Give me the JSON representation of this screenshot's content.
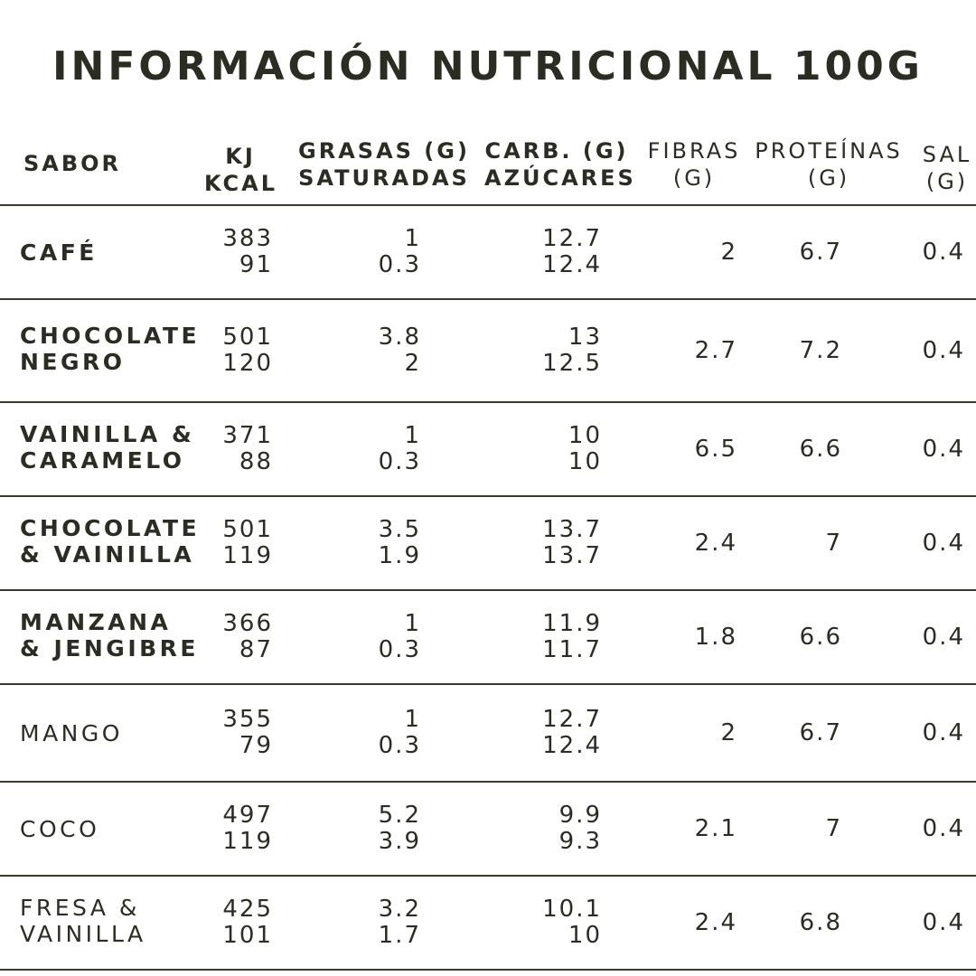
{
  "title": "INFORMACIÓN NUTRICIONAL 100G",
  "headers": {
    "sabor": "SABOR",
    "kj": "KJ",
    "kcal": "KCAL",
    "grasas": "GRASAS (G)",
    "saturadas": "SATURADAS",
    "carb": "CARB. (G)",
    "azucares": "AZÚCARES",
    "fibras_1": "FIBRAS",
    "fibras_2": "(G)",
    "proteinas_1": "PROTEÍNAS",
    "proteinas_2": "(G)",
    "sal_1": "SAL",
    "sal_2": "(G)"
  },
  "rows": [
    {
      "sabor": [
        "CAFÉ"
      ],
      "kj": "383",
      "kcal": "91",
      "grasas": "1",
      "saturadas": "0.3",
      "carb": "12.7",
      "azucares": "12.4",
      "fibras": "2",
      "proteinas": "6.7",
      "sal": "0.4"
    },
    {
      "sabor": [
        "CHOCOLATE",
        "NEGRO"
      ],
      "kj": "501",
      "kcal": "120",
      "grasas": "3.8",
      "saturadas": "2",
      "carb": "13",
      "azucares": "12.5",
      "fibras": "2.7",
      "proteinas": "7.2",
      "sal": "0.4"
    },
    {
      "sabor": [
        "VAINILLA &",
        "CARAMELO"
      ],
      "kj": "371",
      "kcal": "88",
      "grasas": "1",
      "saturadas": "0.3",
      "carb": "10",
      "azucares": "10",
      "fibras": "6.5",
      "proteinas": "6.6",
      "sal": "0.4"
    },
    {
      "sabor": [
        "CHOCOLATE",
        "& VAINILLA"
      ],
      "kj": "501",
      "kcal": "119",
      "grasas": "3.5",
      "saturadas": "1.9",
      "carb": "13.7",
      "azucares": "13.7",
      "fibras": "2.4",
      "proteinas": "7",
      "sal": "0.4"
    },
    {
      "sabor": [
        "MANZANA",
        "& JENGIBRE"
      ],
      "kj": "366",
      "kcal": "87",
      "grasas": "1",
      "saturadas": "0.3",
      "carb": "11.9",
      "azucares": "11.7",
      "fibras": "1.8",
      "proteinas": "6.6",
      "sal": "0.4"
    },
    {
      "sabor": [
        "MANGO"
      ],
      "kj": "355",
      "kcal": "79",
      "grasas": "1",
      "saturadas": "0.3",
      "carb": "12.7",
      "azucares": "12.4",
      "fibras": "2",
      "proteinas": "6.7",
      "sal": "0.4"
    },
    {
      "sabor": [
        "COCO"
      ],
      "kj": "497",
      "kcal": "119",
      "grasas": "5.2",
      "saturadas": "3.9",
      "carb": "9.9",
      "azucares": "9.3",
      "fibras": "2.1",
      "proteinas": "7",
      "sal": "0.4"
    },
    {
      "sabor": [
        "FRESA &",
        "VAINILLA"
      ],
      "kj": "425",
      "kcal": "101",
      "grasas": "3.2",
      "saturadas": "1.7",
      "carb": "10.1",
      "azucares": "10",
      "fibras": "2.4",
      "proteinas": "6.8",
      "sal": "0.4"
    }
  ]
}
